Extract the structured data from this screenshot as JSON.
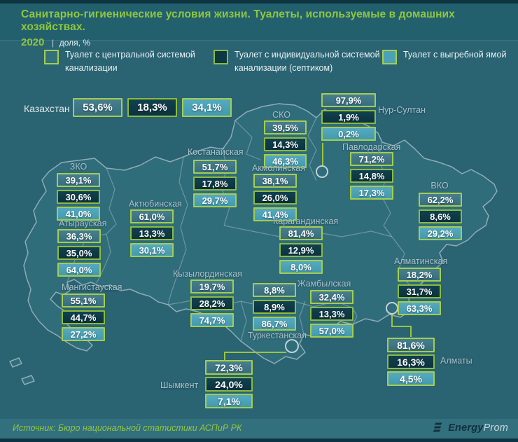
{
  "header": {
    "title": "Санитарно-гигиенические условия жизни. Туалеты, используемые в домашних хозяйствах.",
    "year": "2020",
    "separator": "|",
    "unit": "доля, %"
  },
  "legend": {
    "items": [
      {
        "id": "central",
        "label": "Туалет с центральной системой канализации"
      },
      {
        "id": "septic",
        "label": "Туалет с индивидуальной системой канализации (септиком)"
      },
      {
        "id": "cesspool",
        "label": "Туалет с выгребной ямой"
      }
    ]
  },
  "national": {
    "name": "Казахстан",
    "values": [
      "53,6%",
      "18,3%",
      "34,1%"
    ]
  },
  "regions": [
    {
      "id": "nursultan",
      "name": "Нур-Султан",
      "values": [
        "97,9%",
        "1,9%",
        "0,2%"
      ]
    },
    {
      "id": "sko",
      "name": "СКО",
      "values": [
        "39,5%",
        "14,3%",
        "46,3%"
      ]
    },
    {
      "id": "pavlodar",
      "name": "Павлодарская",
      "values": [
        "71,2%",
        "14,8%",
        "17,3%"
      ]
    },
    {
      "id": "kostanay",
      "name": "Костанайская",
      "values": [
        "51,7%",
        "17,8%",
        "29,7%"
      ]
    },
    {
      "id": "akmola",
      "name": "Акмолинская",
      "values": [
        "38,1%",
        "26,0%",
        "41,4%"
      ]
    },
    {
      "id": "zko",
      "name": "ЗКО",
      "values": [
        "39,1%",
        "30,6%",
        "41,0%"
      ]
    },
    {
      "id": "aktobe",
      "name": "Актюбинская",
      "values": [
        "61,0%",
        "13,3%",
        "30,1%"
      ]
    },
    {
      "id": "atyrau",
      "name": "Атырауская",
      "values": [
        "36,3%",
        "35,0%",
        "64,0%"
      ]
    },
    {
      "id": "mangistau",
      "name": "Мангистауская",
      "values": [
        "55,1%",
        "44,7%",
        "27,2%"
      ]
    },
    {
      "id": "kyzylorda",
      "name": "Кызылординская",
      "values": [
        "19,7%",
        "28,2%",
        "74,7%"
      ]
    },
    {
      "id": "karaganda",
      "name": "Карагандинская",
      "values": [
        "81,4%",
        "12,9%",
        "8,0%"
      ]
    },
    {
      "id": "vko",
      "name": "ВКО",
      "values": [
        "62,2%",
        "8,6%",
        "29,2%"
      ]
    },
    {
      "id": "zhambyl",
      "name": "Жамбылская",
      "values": [
        "32,4%",
        "13,3%",
        "57,0%"
      ]
    },
    {
      "id": "turkestan",
      "name": "Туркестанская",
      "values": [
        "8,8%",
        "8,9%",
        "86,7%"
      ]
    },
    {
      "id": "almatinskaya",
      "name": "Алматинская",
      "values": [
        "18,2%",
        "31,7%",
        "63,3%"
      ]
    },
    {
      "id": "almaty",
      "name": "Алматы",
      "values": [
        "81,6%",
        "16,3%",
        "4,5%"
      ]
    },
    {
      "id": "shymkent",
      "name": "Шымкент",
      "values": [
        "72,3%",
        "24,0%",
        "7,1%"
      ]
    }
  ],
  "footer": {
    "source": "Источник: Бюро национальной статистики АСПиР РК",
    "logo_bold": "Energy",
    "logo_light": "Prom"
  },
  "colors": {
    "accent_green": "#9cc43f",
    "title_green": "#8fc73f",
    "category_central": "#3b7988",
    "category_septic": "#0c3843",
    "category_cesspool": "#4ba1b6",
    "background": "#2a6372",
    "dark_strip": "#0d3440"
  },
  "chart_data": {
    "type": "table",
    "title": "Санитарно-гигиенические условия жизни. Туалеты, используемые в домашних хозяйствах. 2020 | доля, %",
    "columns": [
      "Регион",
      "Туалет с центральной системой канализации",
      "Туалет с индивидуальной системой канализации (септиком)",
      "Туалет с выгребной ямой"
    ],
    "rows": [
      [
        "Казахстан",
        53.6,
        18.3,
        34.1
      ],
      [
        "Нур-Султан",
        97.9,
        1.9,
        0.2
      ],
      [
        "СКО",
        39.5,
        14.3,
        46.3
      ],
      [
        "Павлодарская",
        71.2,
        14.8,
        17.3
      ],
      [
        "Костанайская",
        51.7,
        17.8,
        29.7
      ],
      [
        "Акмолинская",
        38.1,
        26.0,
        41.4
      ],
      [
        "ЗКО",
        39.1,
        30.6,
        41.0
      ],
      [
        "Актюбинская",
        61.0,
        13.3,
        30.1
      ],
      [
        "Атырауская",
        36.3,
        35.0,
        64.0
      ],
      [
        "Мангистауская",
        55.1,
        44.7,
        27.2
      ],
      [
        "Кызылординская",
        19.7,
        28.2,
        74.7
      ],
      [
        "Карагандинская",
        81.4,
        12.9,
        8.0
      ],
      [
        "ВКО",
        62.2,
        8.6,
        29.2
      ],
      [
        "Жамбылская",
        32.4,
        13.3,
        57.0
      ],
      [
        "Туркестанская",
        8.8,
        8.9,
        86.7
      ],
      [
        "Алматинская",
        18.2,
        31.7,
        63.3
      ],
      [
        "Алматы",
        81.6,
        16.3,
        4.5
      ],
      [
        "Шымкент",
        72.3,
        24.0,
        7.1
      ]
    ],
    "unit": "%",
    "source": "Бюро национальной статистики АСПиР РК"
  }
}
